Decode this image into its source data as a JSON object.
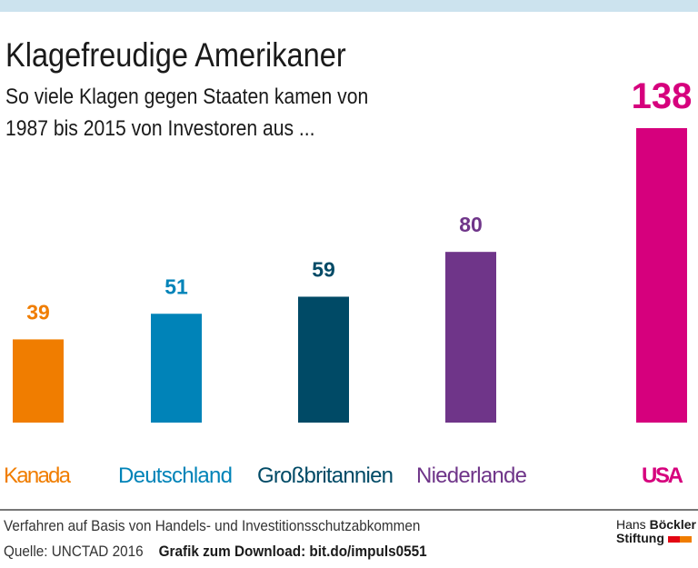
{
  "header": {
    "title": "Klagefreudige Amerikaner",
    "subtitle_line1": "So viele Klagen gegen Staaten kamen von",
    "subtitle_line2": "1987 bis 2015 von Investoren aus ..."
  },
  "chart_data": {
    "type": "bar",
    "categories": [
      "Kanada",
      "Deutschland",
      "Großbritannien",
      "Niederlande",
      "USA"
    ],
    "values": [
      39,
      51,
      59,
      80,
      138
    ],
    "colors": [
      "#f07d00",
      "#0083b8",
      "#004a66",
      "#6f3589",
      "#d6007d"
    ],
    "ylim": [
      0,
      138
    ]
  },
  "footer": {
    "note": "Verfahren auf Basis von Handels- und Investitionsschutzabkommen",
    "source": "Quelle: UNCTAD 2016",
    "download": "Grafik zum Download: bit.do/impuls0551"
  },
  "logo": {
    "line1a": "Hans",
    "line1b": "Böckler",
    "line2": "Stiftung",
    "colors": [
      "#e30613",
      "#f07d00"
    ]
  }
}
